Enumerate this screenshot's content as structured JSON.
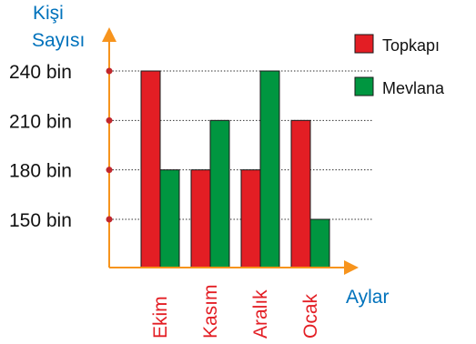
{
  "chart_data": {
    "type": "bar",
    "ylabel": [
      "Kişi",
      "Sayısı"
    ],
    "xlabel": "Aylar",
    "categories": [
      "Ekim",
      "Kasım",
      "Aralık",
      "Ocak"
    ],
    "yticks": [
      {
        "value": 150,
        "label": "150 bin"
      },
      {
        "value": 180,
        "label": "180 bin"
      },
      {
        "value": 210,
        "label": "210 bin"
      },
      {
        "value": 240,
        "label": "240 bin"
      }
    ],
    "series": [
      {
        "name": "Topkapı",
        "values": [
          240,
          180,
          180,
          210
        ],
        "color": "#e31e24"
      },
      {
        "name": "Mevlana",
        "values": [
          180,
          210,
          240,
          150
        ],
        "color": "#009640"
      }
    ],
    "legend_position": "top-right",
    "grid": "dotted-horizontal-at-ticks",
    "colors": {
      "axis": "#f7941d",
      "ylabel": "#0072bc",
      "xlabel": "#0072bc",
      "category": "#e31e24",
      "marker": "#c1272d"
    }
  }
}
